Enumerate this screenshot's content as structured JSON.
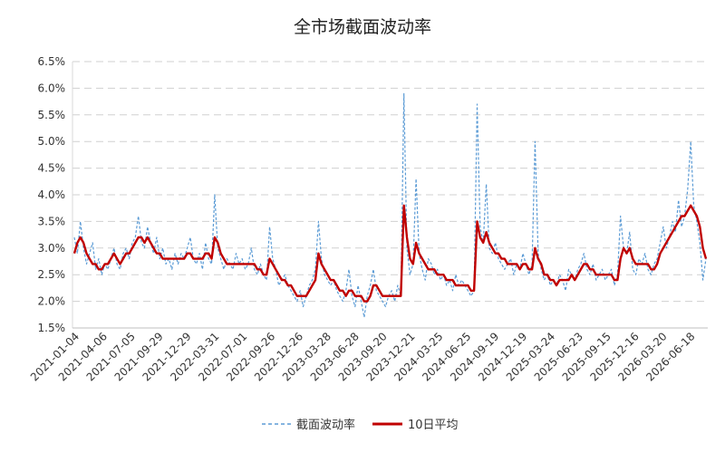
{
  "chart_data": {
    "type": "line",
    "title": "全市场截面波动率",
    "xlabel": "",
    "ylabel": "",
    "y_tick_labels": [
      "1.5%",
      "2.0%",
      "2.5%",
      "3.0%",
      "3.5%",
      "4.0%",
      "4.5%",
      "5.0%",
      "5.5%",
      "6.0%",
      "6.5%"
    ],
    "ylim": [
      1.5,
      6.5
    ],
    "y_unit": "%",
    "x_tick_labels": [
      "2021-01-04",
      "2021-04-06",
      "2021-07-05",
      "2021-09-29",
      "2021-12-29",
      "2022-03-31",
      "2022-07-01",
      "2022-09-26",
      "2022-12-26",
      "2023-03-28",
      "2023-06-28",
      "2023-09-20",
      "2023-12-21",
      "2024-03-25",
      "2024-06-25",
      "2024-09-19",
      "2024-12-19",
      "2025-03-24",
      "2025-06-23",
      "2025-09-15",
      "2025-12-16",
      "2026-03-20",
      "2026-06-18"
    ],
    "grid": "horizontal dashed",
    "legend_position": "bottom-center",
    "series": [
      {
        "name": "截面波动率",
        "style": "dashed",
        "color": "#5b9bd5",
        "values": [
          3.2,
          2.9,
          3.5,
          3.0,
          2.7,
          2.9,
          3.1,
          2.6,
          2.8,
          2.5,
          2.7,
          2.6,
          2.8,
          3.0,
          2.7,
          2.6,
          2.9,
          3.0,
          2.8,
          3.1,
          3.2,
          3.6,
          3.1,
          3.0,
          3.4,
          3.1,
          2.9,
          3.2,
          2.8,
          3.0,
          2.7,
          2.8,
          2.6,
          2.9,
          2.7,
          2.9,
          2.8,
          3.0,
          3.2,
          2.8,
          2.7,
          2.9,
          2.6,
          3.1,
          2.8,
          2.7,
          4.0,
          3.0,
          2.8,
          2.6,
          2.8,
          2.7,
          2.6,
          2.9,
          2.7,
          2.8,
          2.6,
          2.7,
          3.0,
          2.6,
          2.5,
          2.7,
          2.5,
          2.4,
          3.4,
          2.8,
          2.6,
          2.3,
          2.4,
          2.5,
          2.3,
          2.2,
          2.1,
          2.0,
          2.2,
          1.9,
          2.1,
          2.3,
          2.4,
          2.6,
          3.5,
          2.8,
          2.5,
          2.4,
          2.3,
          2.4,
          2.2,
          2.1,
          2.0,
          2.2,
          2.6,
          2.1,
          1.9,
          2.3,
          2.0,
          1.7,
          2.1,
          2.3,
          2.6,
          2.2,
          2.1,
          2.0,
          1.9,
          2.1,
          2.2,
          2.0,
          2.3,
          2.1,
          5.9,
          3.0,
          2.5,
          2.7,
          4.3,
          2.9,
          2.6,
          2.4,
          2.8,
          2.7,
          2.5,
          2.6,
          2.4,
          2.5,
          2.3,
          2.4,
          2.2,
          2.5,
          2.3,
          2.4,
          2.3,
          2.2,
          2.1,
          2.2,
          5.7,
          3.4,
          3.1,
          4.2,
          3.0,
          2.9,
          3.1,
          2.8,
          2.7,
          2.6,
          2.7,
          2.8,
          2.5,
          2.7,
          2.6,
          2.9,
          2.7,
          2.5,
          2.7,
          5.0,
          2.9,
          2.6,
          2.4,
          2.5,
          2.3,
          2.4,
          2.3,
          2.5,
          2.4,
          2.2,
          2.6,
          2.5,
          2.4,
          2.6,
          2.7,
          2.9,
          2.6,
          2.5,
          2.7,
          2.4,
          2.5,
          2.6,
          2.4,
          2.5,
          2.6,
          2.3,
          2.5,
          3.6,
          3.0,
          2.9,
          3.3,
          2.6,
          2.5,
          2.8,
          2.7,
          2.9,
          2.6,
          2.5,
          2.7,
          2.8,
          3.1,
          3.4,
          3.0,
          3.2,
          3.5,
          3.3,
          3.9,
          3.4,
          3.6,
          4.1,
          5.0,
          3.8,
          3.5,
          3.1,
          2.4,
          2.8
        ]
      },
      {
        "name": "10日平均",
        "style": "solid",
        "color": "#c00000",
        "values": [
          2.9,
          3.1,
          3.2,
          3.1,
          2.9,
          2.8,
          2.7,
          2.7,
          2.6,
          2.6,
          2.7,
          2.7,
          2.8,
          2.9,
          2.8,
          2.7,
          2.8,
          2.9,
          2.9,
          3.0,
          3.1,
          3.2,
          3.2,
          3.1,
          3.2,
          3.1,
          3.0,
          2.9,
          2.9,
          2.8,
          2.8,
          2.8,
          2.8,
          2.8,
          2.8,
          2.8,
          2.8,
          2.9,
          2.9,
          2.8,
          2.8,
          2.8,
          2.8,
          2.9,
          2.9,
          2.8,
          3.2,
          3.1,
          2.9,
          2.8,
          2.7,
          2.7,
          2.7,
          2.7,
          2.7,
          2.7,
          2.7,
          2.7,
          2.7,
          2.7,
          2.6,
          2.6,
          2.5,
          2.5,
          2.8,
          2.7,
          2.6,
          2.5,
          2.4,
          2.4,
          2.3,
          2.3,
          2.2,
          2.1,
          2.1,
          2.1,
          2.1,
          2.2,
          2.3,
          2.4,
          2.9,
          2.7,
          2.6,
          2.5,
          2.4,
          2.4,
          2.3,
          2.2,
          2.2,
          2.1,
          2.2,
          2.2,
          2.1,
          2.1,
          2.1,
          2.0,
          2.0,
          2.1,
          2.3,
          2.3,
          2.2,
          2.1,
          2.1,
          2.1,
          2.1,
          2.1,
          2.1,
          2.1,
          3.8,
          3.2,
          2.8,
          2.7,
          3.1,
          2.9,
          2.8,
          2.7,
          2.6,
          2.6,
          2.6,
          2.5,
          2.5,
          2.5,
          2.4,
          2.4,
          2.4,
          2.3,
          2.3,
          2.3,
          2.3,
          2.3,
          2.2,
          2.2,
          3.5,
          3.2,
          3.1,
          3.3,
          3.1,
          3.0,
          2.9,
          2.9,
          2.8,
          2.8,
          2.7,
          2.7,
          2.7,
          2.7,
          2.6,
          2.7,
          2.7,
          2.6,
          2.6,
          3.0,
          2.8,
          2.7,
          2.5,
          2.5,
          2.4,
          2.4,
          2.3,
          2.4,
          2.4,
          2.4,
          2.4,
          2.5,
          2.4,
          2.5,
          2.6,
          2.7,
          2.7,
          2.6,
          2.6,
          2.5,
          2.5,
          2.5,
          2.5,
          2.5,
          2.5,
          2.4,
          2.4,
          2.8,
          3.0,
          2.9,
          3.0,
          2.8,
          2.7,
          2.7,
          2.7,
          2.7,
          2.7,
          2.6,
          2.6,
          2.7,
          2.9,
          3.0,
          3.1,
          3.2,
          3.3,
          3.4,
          3.5,
          3.6,
          3.6,
          3.7,
          3.8,
          3.7,
          3.6,
          3.4,
          3.0,
          2.8
        ]
      }
    ]
  }
}
